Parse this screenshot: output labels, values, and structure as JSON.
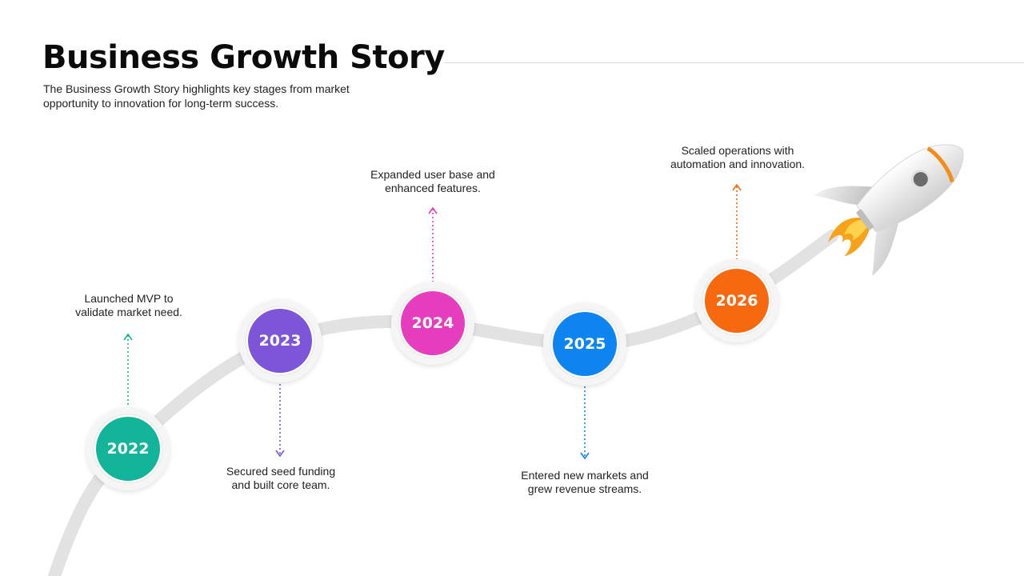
{
  "header": {
    "title": "Business Growth Story",
    "subtitle": "The Business Growth Story highlights key stages from market opportunity to innovation for long-term success."
  },
  "milestones": [
    {
      "year": "2022",
      "text": "Launched MVP to\nvalidate market need.",
      "color": "#12b59a",
      "direction": "up"
    },
    {
      "year": "2023",
      "text": "Secured seed funding\nand built core team.",
      "color": "#7c55d9",
      "direction": "down"
    },
    {
      "year": "2024",
      "text": "Expanded user base and\nenhanced features.",
      "color": "#e63cbe",
      "direction": "up"
    },
    {
      "year": "2025",
      "text": "Entered new markets and\ngrew revenue streams.",
      "color": "#0d84f0",
      "direction": "down"
    },
    {
      "year": "2026",
      "text": "Scaled operations with\nautomation and innovation.",
      "color": "#f7680f",
      "direction": "up"
    }
  ],
  "decor": {
    "track_color": "#e2e2e2",
    "rocket_icon": "rocket-icon",
    "rocket_body_color": "#e9e9e9",
    "rocket_accent_color": "#f28c1b"
  }
}
